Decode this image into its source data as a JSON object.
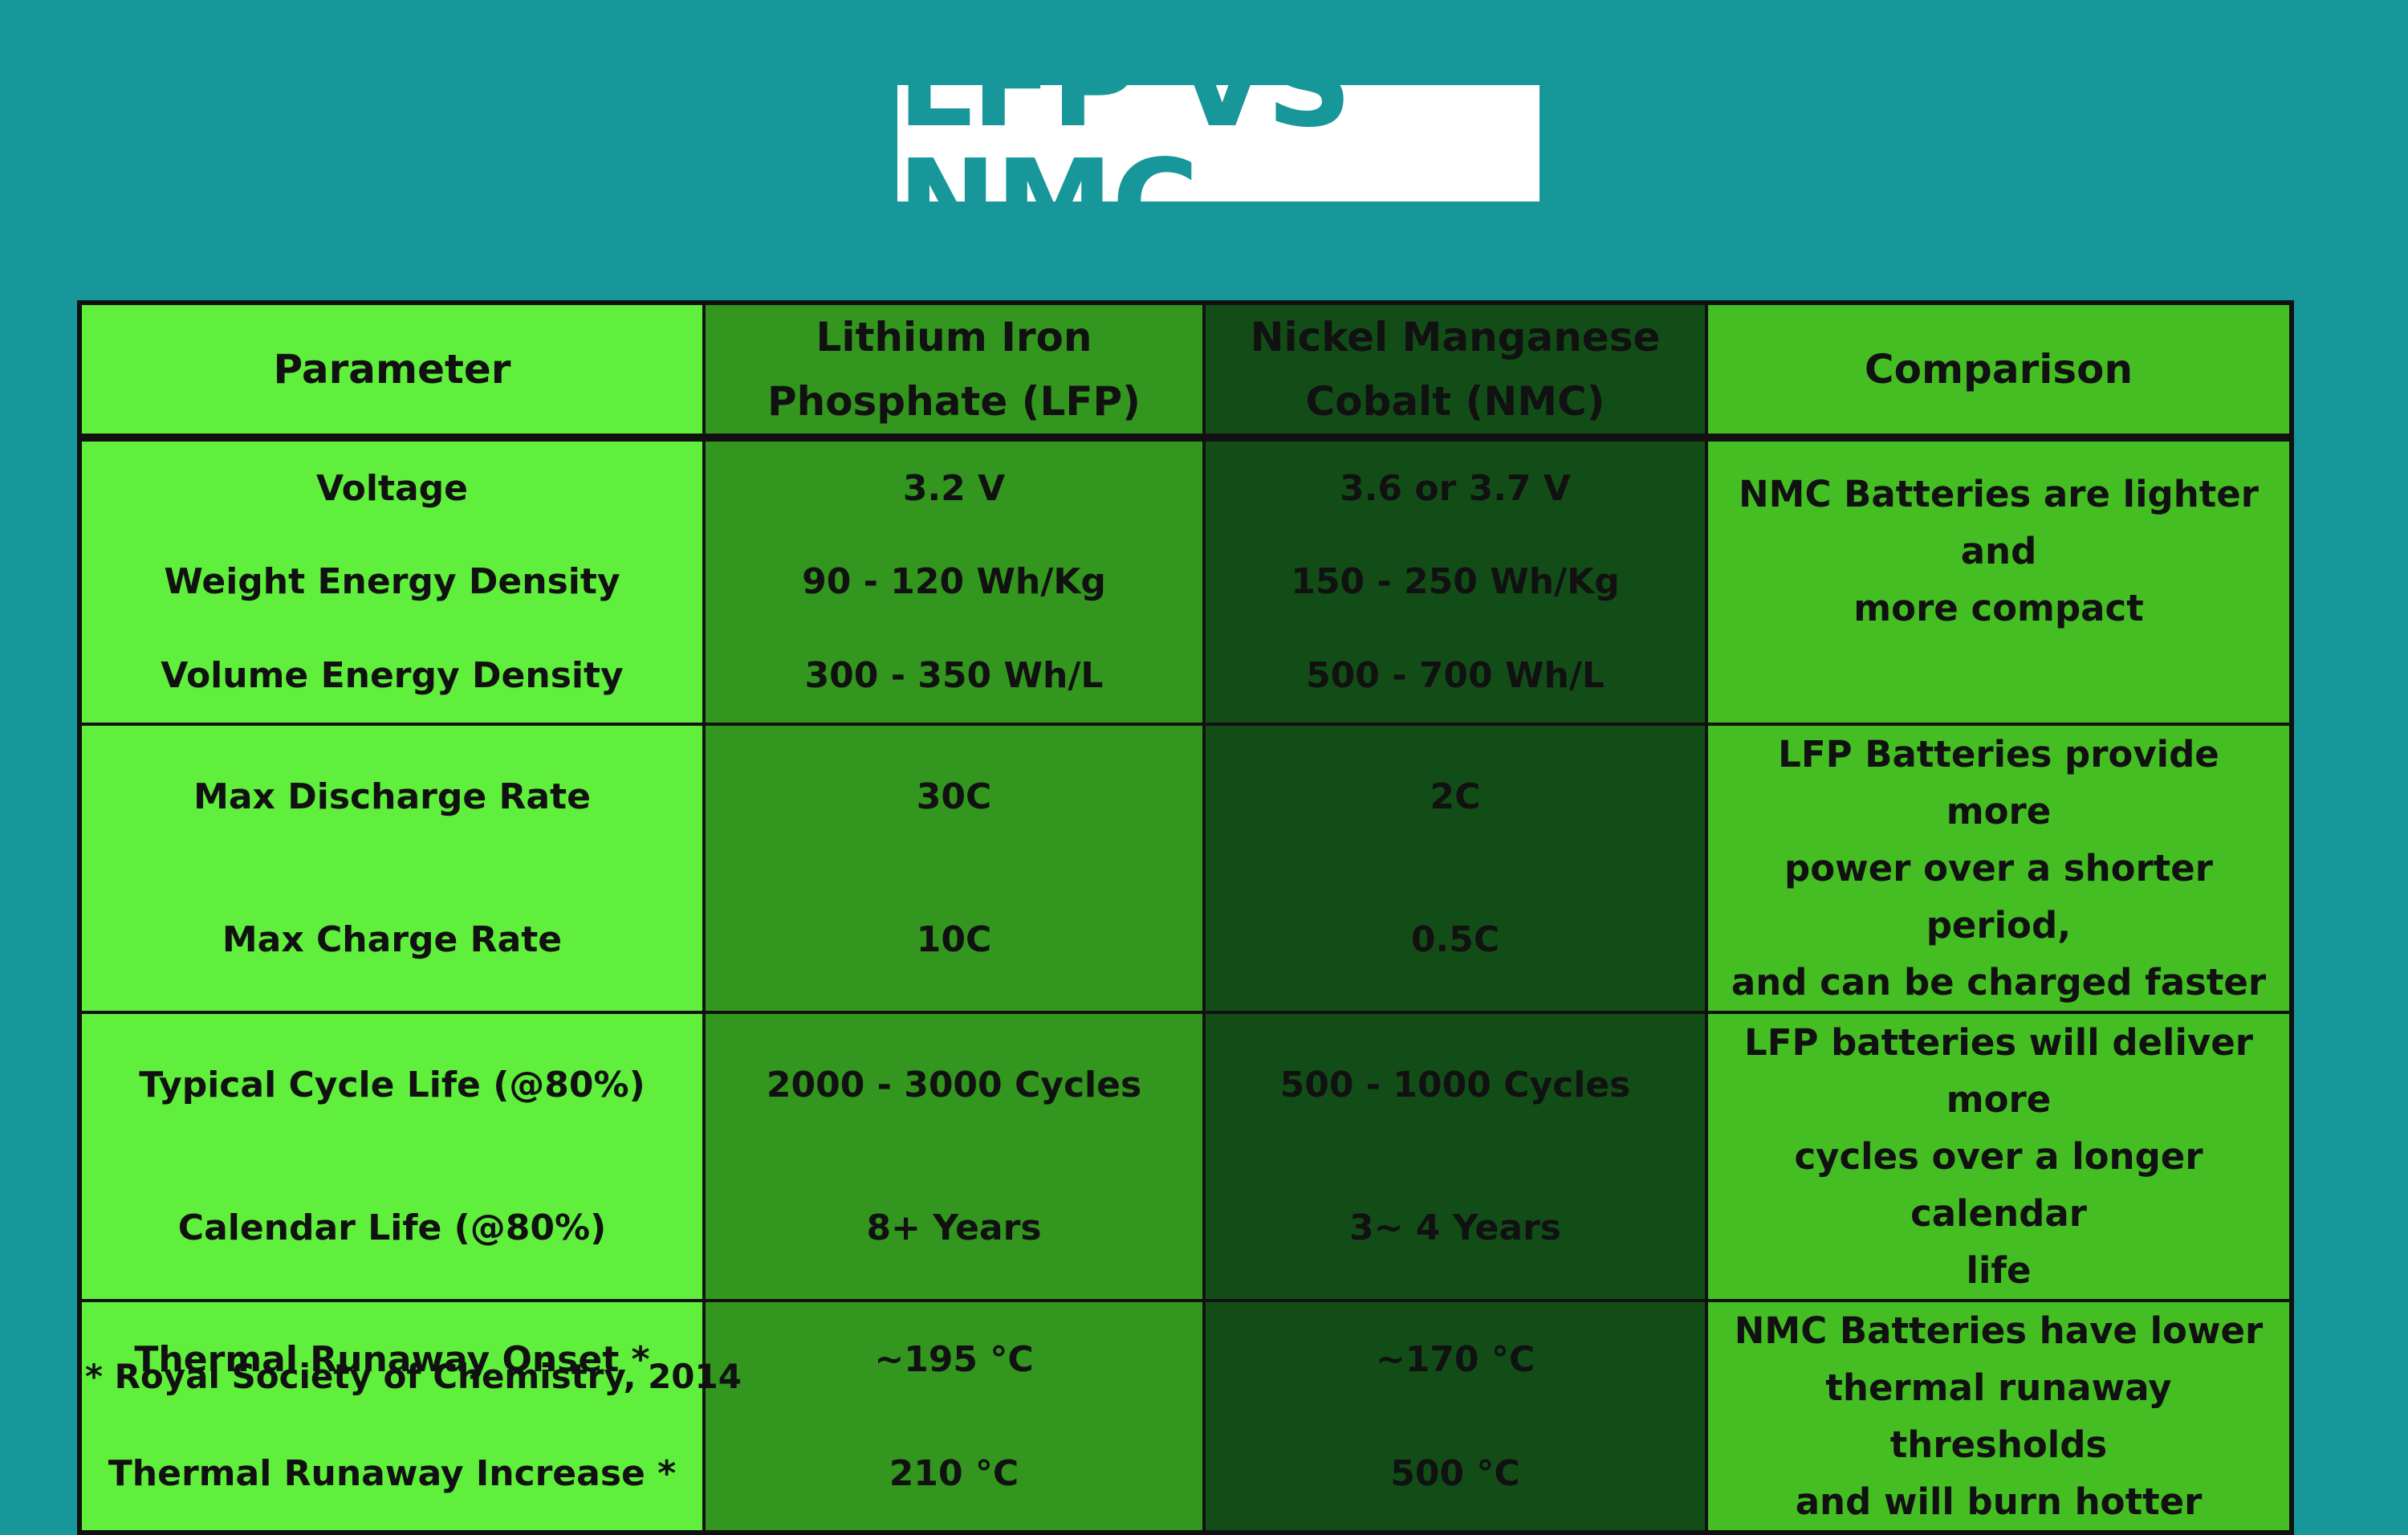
{
  "title": "LFP VS NMC",
  "table": {
    "headers": {
      "parameter": "Parameter",
      "lfp_line1": "Lithium Iron",
      "lfp_line2": "Phosphate (LFP)",
      "nmc_line1": "Nickel Manganese",
      "nmc_line2": "Cobalt (NMC)",
      "comparison": "Comparison"
    },
    "groups": [
      {
        "rows": [
          {
            "parameter": "Voltage",
            "lfp": "3.2 V",
            "nmc": "3.6 or 3.7 V"
          },
          {
            "parameter": "Weight Energy Density",
            "lfp": "90 - 120 Wh/Kg",
            "nmc": "150 - 250 Wh/Kg"
          },
          {
            "parameter": "Volume Energy Density",
            "lfp": "300 - 350 Wh/L",
            "nmc": "500 - 700 Wh/L"
          }
        ],
        "comparison": [
          "NMC Batteries are lighter and",
          "more compact"
        ]
      },
      {
        "rows": [
          {
            "parameter": "Max Discharge Rate",
            "lfp": "30C",
            "nmc": "2C"
          },
          {
            "parameter": "Max Charge Rate",
            "lfp": "10C",
            "nmc": "0.5C"
          }
        ],
        "comparison": [
          "LFP Batteries provide more",
          "power over a shorter period,",
          "and can be charged faster"
        ]
      },
      {
        "rows": [
          {
            "parameter": "Typical Cycle Life (@80%)",
            "lfp": "2000 - 3000 Cycles",
            "nmc": "500 - 1000 Cycles"
          },
          {
            "parameter": "Calendar Life (@80%)",
            "lfp": "8+ Years",
            "nmc": "3~ 4 Years"
          }
        ],
        "comparison": [
          "LFP batteries will deliver more",
          "cycles over a longer calendar",
          "life"
        ]
      },
      {
        "rows": [
          {
            "parameter": "Thermal Runaway Onset *",
            "lfp": "~195 °C",
            "nmc": "~170 °C"
          },
          {
            "parameter": "Thermal Runaway Increase *",
            "lfp": "210 °C",
            "nmc": "500 °C"
          }
        ],
        "comparison": [
          "NMC Batteries have lower",
          "thermal runaway thresholds",
          "and will burn hotter"
        ]
      }
    ]
  },
  "footnote": "* Royal Society of Chemistry, 2014",
  "colors": {
    "background": "#18979a",
    "parameter_column": "#60ef3c",
    "lfp_column": "#33961f",
    "nmc_column": "#124d18",
    "comparison_column": "#45be24"
  }
}
